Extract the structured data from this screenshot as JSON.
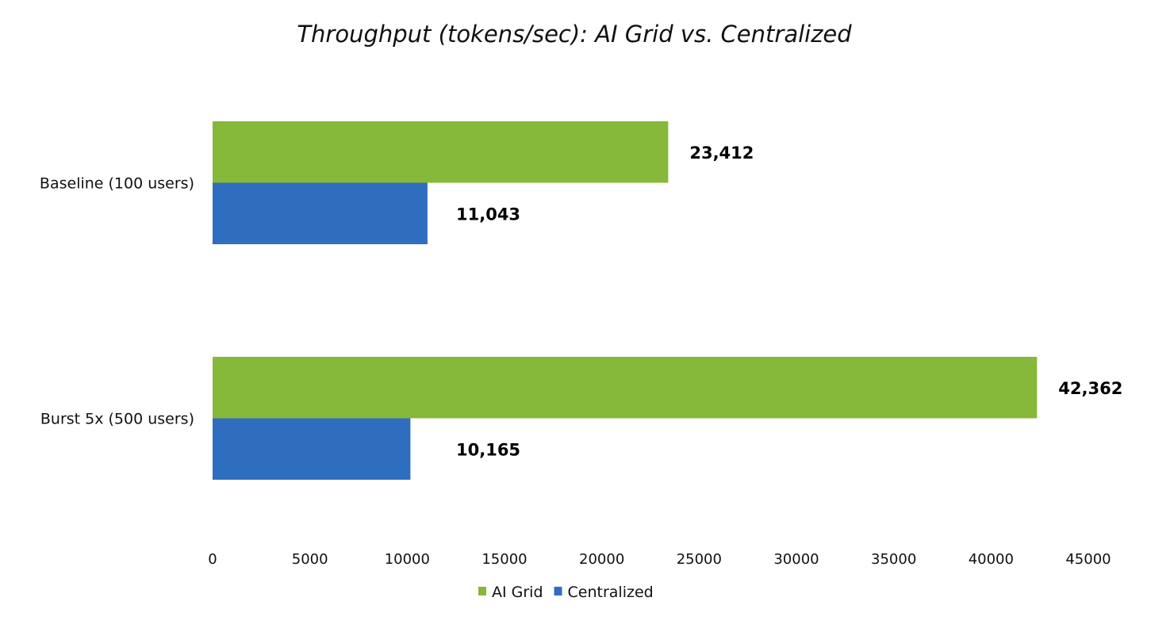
{
  "chart_data": {
    "type": "bar",
    "orientation": "horizontal",
    "title": "Throughput (tokens/sec): AI Grid vs. Centralized",
    "xlabel": "",
    "ylabel": "",
    "categories": [
      "Baseline (100 users)",
      "Burst 5x (500 users)"
    ],
    "series": [
      {
        "name": "AI Grid",
        "color": "#86b839",
        "values": [
          23412,
          42362
        ],
        "labels": [
          "23,412",
          "42,362"
        ]
      },
      {
        "name": "Centralized",
        "color": "#2f6ebf",
        "values": [
          11043,
          10165
        ],
        "labels": [
          "11,043",
          "10,165"
        ]
      }
    ],
    "xlim": [
      0,
      45000
    ],
    "xticks": [
      "0",
      "5000",
      "10000",
      "15000",
      "20000",
      "25000",
      "30000",
      "35000",
      "40000",
      "45000"
    ],
    "grid": false,
    "legend": "bottom"
  }
}
